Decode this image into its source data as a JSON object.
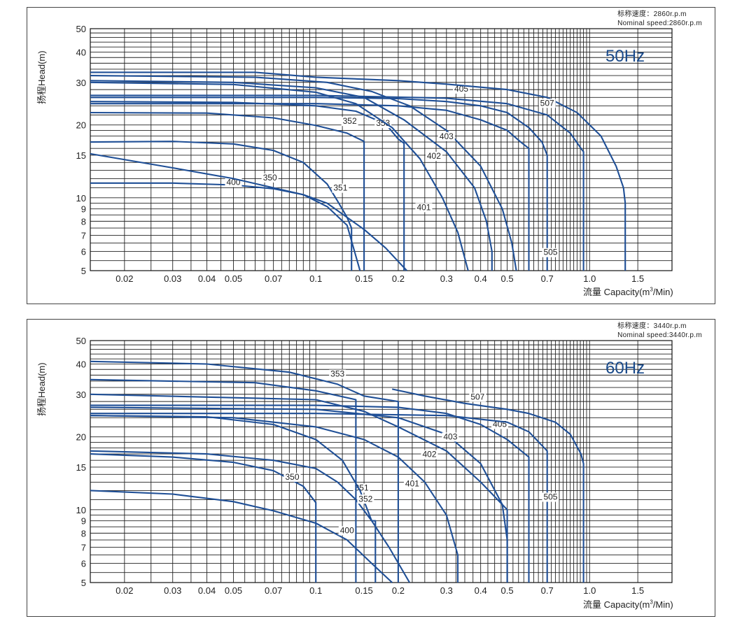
{
  "chart_data": [
    {
      "type": "line",
      "id": "50hz",
      "badge": "50Hz",
      "speed_cn": "标称速度：2860r.p.m",
      "speed_en": "Nominal speed:2860r.p.m",
      "ylabel": "扬程Head(m)",
      "xlabel_main": "流量 Capacity(m",
      "xlabel_sup": "3",
      "xlabel_tail": "/Min)",
      "xscale": "log",
      "yscale": "log",
      "xlim": [
        0.015,
        2.0
      ],
      "ylim": [
        5,
        50
      ],
      "grid": true,
      "xticks": [
        "0.02",
        "0.03",
        "0.04",
        "0.05",
        "0.07",
        "0.1",
        "0.15",
        "0.2",
        "0.3",
        "0.4",
        "0.5",
        "0.7",
        "1.0",
        "1.5"
      ],
      "yticks": [
        "5",
        "6",
        "7",
        "8",
        "9",
        "10",
        "15",
        "20",
        "30",
        "40",
        "50"
      ],
      "series": [
        {
          "name": "400",
          "points": [
            [
              0.015,
              11.5
            ],
            [
              0.03,
              11.5
            ],
            [
              0.05,
              11.3
            ],
            [
              0.07,
              10.9
            ],
            [
              0.09,
              10.3
            ],
            [
              0.11,
              9.2
            ],
            [
              0.13,
              7.7
            ],
            [
              0.145,
              5
            ]
          ],
          "label_at": [
            0.05,
            11.3
          ]
        },
        {
          "name": "350",
          "points": [
            [
              0.015,
              15.2
            ],
            [
              0.03,
              13.3
            ],
            [
              0.05,
              12.0
            ],
            [
              0.07,
              11.0
            ],
            [
              0.09,
              10.3
            ],
            [
              0.11,
              9.5
            ],
            [
              0.13,
              8.3
            ],
            [
              0.15,
              7.4
            ],
            [
              0.18,
              6.2
            ],
            [
              0.215,
              5
            ]
          ],
          "label_at": [
            0.068,
            11.8
          ]
        },
        {
          "name": "351",
          "points": [
            [
              0.015,
              17
            ],
            [
              0.03,
              17.1
            ],
            [
              0.05,
              16.7
            ],
            [
              0.07,
              15.7
            ],
            [
              0.09,
              14.0
            ],
            [
              0.11,
              11.4
            ],
            [
              0.12,
              9.7
            ],
            [
              0.13,
              8.3
            ],
            [
              0.135,
              7.5
            ],
            [
              0.135,
              5
            ]
          ],
          "label_at": [
            0.123,
            10.7
          ]
        },
        {
          "name": "352",
          "points": [
            [
              0.015,
              22.5
            ],
            [
              0.04,
              22.4
            ],
            [
              0.07,
              21.4
            ],
            [
              0.1,
              19.9
            ],
            [
              0.13,
              18.5
            ],
            [
              0.15,
              17.1
            ],
            [
              0.15,
              5
            ]
          ],
          "label_at": [
            0.133,
            20.2
          ]
        },
        {
          "name": "353",
          "points": [
            [
              0.015,
              25
            ],
            [
              0.05,
              24.8
            ],
            [
              0.1,
              24.0
            ],
            [
              0.14,
              22.8
            ],
            [
              0.18,
              20.2
            ],
            [
              0.2,
              17.5
            ],
            [
              0.21,
              16.8
            ],
            [
              0.21,
              5
            ]
          ],
          "label_at": [
            0.176,
            19.8
          ]
        },
        {
          "name": "401",
          "points": [
            [
              0.015,
              30
            ],
            [
              0.05,
              29.4
            ],
            [
              0.1,
              27.3
            ],
            [
              0.14,
              24.5
            ],
            [
              0.19,
              19.5
            ],
            [
              0.24,
              14.5
            ],
            [
              0.29,
              10.0
            ],
            [
              0.33,
              7.2
            ],
            [
              0.36,
              5
            ]
          ],
          "label_at": [
            0.248,
            8.9
          ]
        },
        {
          "name": "402",
          "points": [
            [
              0.015,
              30.5
            ],
            [
              0.05,
              30.0
            ],
            [
              0.1,
              28.5
            ],
            [
              0.15,
              26.0
            ],
            [
              0.21,
              21.0
            ],
            [
              0.3,
              15.5
            ],
            [
              0.38,
              11.0
            ],
            [
              0.42,
              8.0
            ],
            [
              0.44,
              6.0
            ],
            [
              0.44,
              5
            ]
          ],
          "label_at": [
            0.27,
            14.5
          ]
        },
        {
          "name": "403",
          "points": [
            [
              0.015,
              32
            ],
            [
              0.06,
              31.5
            ],
            [
              0.11,
              30.0
            ],
            [
              0.16,
              27.5
            ],
            [
              0.22,
              24.0
            ],
            [
              0.3,
              19.0
            ],
            [
              0.4,
              13.5
            ],
            [
              0.48,
              9.0
            ],
            [
              0.52,
              6.5
            ],
            [
              0.54,
              5
            ]
          ],
          "label_at": [
            0.3,
            17.5
          ]
        },
        {
          "name": "405",
          "points": [
            [
              0.015,
              24.5
            ],
            [
              0.1,
              24.5
            ],
            [
              0.2,
              24.0
            ],
            [
              0.3,
              23.0
            ],
            [
              0.4,
              21.0
            ],
            [
              0.5,
              19.0
            ],
            [
              0.56,
              17.0
            ],
            [
              0.6,
              16.0
            ],
            [
              0.6,
              5
            ]
          ],
          "label_at": [
            0.34,
            27.5
          ]
        },
        {
          "name": "505",
          "points": [
            [
              0.015,
              26
            ],
            [
              0.1,
              26
            ],
            [
              0.2,
              25.7
            ],
            [
              0.3,
              25.0
            ],
            [
              0.4,
              24.0
            ],
            [
              0.5,
              22.5
            ],
            [
              0.6,
              19.5
            ],
            [
              0.67,
              17.0
            ],
            [
              0.7,
              15.0
            ],
            [
              0.7,
              5
            ]
          ],
          "label_at": [
            0.72,
            5.8
          ]
        },
        {
          "name": "",
          "points": [
            [
              0.015,
              26.5
            ],
            [
              0.1,
              26.5
            ],
            [
              0.3,
              25.8
            ],
            [
              0.5,
              24.5
            ],
            [
              0.7,
              22.0
            ],
            [
              0.85,
              18.5
            ],
            [
              0.93,
              16.0
            ],
            [
              0.95,
              15.5
            ],
            [
              0.95,
              5
            ]
          ],
          "label_at": null
        },
        {
          "name": "507",
          "points": [
            [
              0.015,
              33.0
            ],
            [
              0.06,
              33.0
            ],
            [
              0.1,
              31.5
            ],
            [
              0.2,
              30.5
            ],
            [
              0.3,
              29.5
            ],
            [
              0.5,
              28.0
            ],
            [
              0.7,
              26.0
            ],
            [
              0.9,
              22.5
            ],
            [
              1.1,
              18.0
            ],
            [
              1.25,
              13.5
            ],
            [
              1.33,
              11.0
            ],
            [
              1.35,
              9.5
            ],
            [
              1.35,
              5
            ]
          ],
          "label_at": [
            0.7,
            24
          ]
        }
      ]
    },
    {
      "type": "line",
      "id": "60hz",
      "badge": "60Hz",
      "speed_cn": "标称速度：3440r.p.m",
      "speed_en": "Nominal speed:3440r.p.m",
      "ylabel": "扬程Head(m)",
      "xlabel_main": "流量 Capacity(m",
      "xlabel_sup": "3",
      "xlabel_tail": "/Min)",
      "xscale": "log",
      "yscale": "log",
      "xlim": [
        0.015,
        2.0
      ],
      "ylim": [
        5,
        50
      ],
      "grid": true,
      "xticks": [
        "0.02",
        "0.03",
        "0.04",
        "0.05",
        "0.07",
        "0.1",
        "0.15",
        "0.2",
        "0.3",
        "0.4",
        "0.5",
        "0.7",
        "1.0",
        "1.5"
      ],
      "yticks": [
        "5",
        "6",
        "7",
        "8",
        "9",
        "10",
        "15",
        "20",
        "30",
        "40",
        "50"
      ],
      "series": [
        {
          "name": "400",
          "points": [
            [
              0.015,
              12.0
            ],
            [
              0.03,
              11.6
            ],
            [
              0.05,
              10.8
            ],
            [
              0.07,
              9.9
            ],
            [
              0.1,
              8.8
            ],
            [
              0.13,
              7.5
            ],
            [
              0.16,
              6.0
            ],
            [
              0.19,
              5
            ]
          ],
          "label_at": [
            0.13,
            8.0
          ]
        },
        {
          "name": "350",
          "points": [
            [
              0.015,
              17.0
            ],
            [
              0.03,
              16.5
            ],
            [
              0.05,
              15.7
            ],
            [
              0.07,
              14.5
            ],
            [
              0.09,
              12.5
            ],
            [
              0.1,
              10.7
            ],
            [
              0.1,
              5
            ]
          ],
          "label_at": [
            0.082,
            13.3
          ]
        },
        {
          "name": "351",
          "points": [
            [
              0.015,
              17.5
            ],
            [
              0.04,
              17.0
            ],
            [
              0.07,
              16.0
            ],
            [
              0.1,
              14.8
            ],
            [
              0.12,
              13.0
            ],
            [
              0.14,
              11.0
            ],
            [
              0.16,
              9.0
            ],
            [
              0.185,
              7.0
            ],
            [
              0.22,
              5
            ]
          ],
          "label_at": [
            0.147,
            12.0
          ]
        },
        {
          "name": "352",
          "points": [
            [
              0.015,
              24.5
            ],
            [
              0.04,
              24.2
            ],
            [
              0.07,
              22.5
            ],
            [
              0.1,
              19.5
            ],
            [
              0.125,
              16.0
            ],
            [
              0.145,
              12.0
            ],
            [
              0.16,
              9.0
            ],
            [
              0.165,
              9.0
            ],
            [
              0.165,
              5
            ]
          ],
          "label_at": [
            0.152,
            10.8
          ]
        },
        {
          "name": "353",
          "points": [
            [
              0.015,
              41.0
            ],
            [
              0.04,
              40.0
            ],
            [
              0.08,
              37.0
            ],
            [
              0.12,
              33.0
            ],
            [
              0.15,
              29.5
            ],
            [
              0.2,
              28.0
            ],
            [
              0.2,
              5
            ]
          ],
          "label_at": [
            0.12,
            35.5
          ]
        },
        {
          "name": "401",
          "points": [
            [
              0.015,
              24.5
            ],
            [
              0.05,
              24.0
            ],
            [
              0.1,
              22.0
            ],
            [
              0.15,
              19.5
            ],
            [
              0.2,
              16.5
            ],
            [
              0.25,
              13.0
            ],
            [
              0.3,
              9.5
            ],
            [
              0.33,
              6.5
            ],
            [
              0.33,
              5
            ]
          ],
          "label_at": [
            0.225,
            12.5
          ]
        },
        {
          "name": "402",
          "points": [
            [
              0.015,
              34.5
            ],
            [
              0.06,
              33.5
            ],
            [
              0.1,
              31.0
            ],
            [
              0.14,
              28.5
            ],
            [
              0.14,
              5
            ]
          ],
          "label_at": [
            0.26,
            16.5
          ]
        },
        {
          "name": "",
          "points": [
            [
              0.015,
              30.0
            ],
            [
              0.1,
              28.5
            ],
            [
              0.15,
              25.5
            ],
            [
              0.2,
              22.0
            ],
            [
              0.3,
              17.5
            ],
            [
              0.4,
              13.0
            ],
            [
              0.5,
              10.0
            ],
            [
              0.5,
              5
            ]
          ],
          "label_at": null
        },
        {
          "name": "403",
          "points": [
            [
              0.015,
              26.5
            ],
            [
              0.1,
              26.0
            ],
            [
              0.2,
              24.0
            ],
            [
              0.3,
              20.5
            ],
            [
              0.4,
              15.5
            ],
            [
              0.48,
              10.5
            ],
            [
              0.5,
              7.5
            ],
            [
              0.5,
              5
            ]
          ],
          "label_at": [
            0.31,
            19.5
          ]
        },
        {
          "name": "405",
          "points": [
            [
              0.015,
              27.0
            ],
            [
              0.1,
              27.0
            ],
            [
              0.2,
              26.5
            ],
            [
              0.3,
              25.0
            ],
            [
              0.4,
              22.5
            ],
            [
              0.5,
              19.5
            ],
            [
              0.6,
              16.5
            ],
            [
              0.6,
              5
            ]
          ],
          "label_at": [
            0.47,
            22.0
          ]
        },
        {
          "name": "505",
          "points": [
            [
              0.015,
              25.0
            ],
            [
              0.1,
              25.0
            ],
            [
              0.3,
              24.5
            ],
            [
              0.5,
              23.0
            ],
            [
              0.6,
              21.0
            ],
            [
              0.7,
              17.5
            ],
            [
              0.7,
              5
            ]
          ],
          "label_at": [
            0.72,
            11.0
          ]
        },
        {
          "name": "507",
          "points": [
            [
              0.19,
              31.5
            ],
            [
              0.25,
              29.5
            ],
            [
              0.35,
              27.5
            ],
            [
              0.5,
              26.0
            ],
            [
              0.6,
              25.0
            ],
            [
              0.75,
              23.0
            ],
            [
              0.85,
              20.5
            ],
            [
              0.93,
              17.0
            ],
            [
              0.95,
              15.5
            ],
            [
              0.95,
              5
            ]
          ],
          "label_at": [
            0.39,
            28.5
          ]
        }
      ]
    }
  ]
}
